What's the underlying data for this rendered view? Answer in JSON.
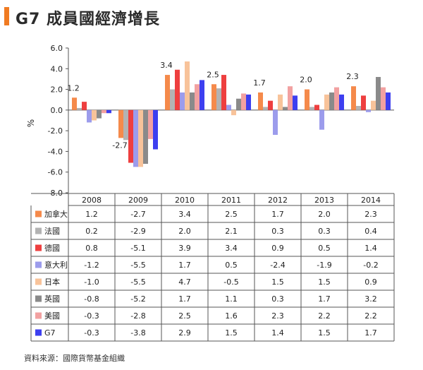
{
  "title": "G7 成員國經濟增長",
  "source": "資料來源：國際貨幣基金組織",
  "accent_color": "#f07b22",
  "chart_data": {
    "type": "bar",
    "title": "G7 成員國經濟增長",
    "ylabel": "%",
    "xlabel": "",
    "ylim": [
      -8.0,
      6.0
    ],
    "yticks": [
      6.0,
      4.0,
      2.0,
      0.0,
      -2.0,
      -4.0,
      -6.0,
      -8.0
    ],
    "ytick_labels": [
      "6.0",
      "4.0",
      "2.0",
      "0.0",
      "-2.0",
      "-4.0",
      "-6.0",
      "-8.0"
    ],
    "grid": false,
    "legend_placement": "table-left",
    "categories": [
      "2008",
      "2009",
      "2010",
      "2011",
      "2012",
      "2013",
      "2014"
    ],
    "annotated_series": "加拿大",
    "annotations": [
      "1.2",
      "-2.7",
      "3.4",
      "2.5",
      "1.7",
      "2.0",
      "2.3"
    ],
    "series": [
      {
        "name": "加拿大",
        "color": "#f58a4b",
        "values": [
          1.2,
          -2.7,
          3.4,
          2.5,
          1.7,
          2.0,
          2.3
        ],
        "labels": [
          "1.2",
          "-2.7",
          "3.4",
          "2.5",
          "1.7",
          "2.0",
          "2.3"
        ]
      },
      {
        "name": "法國",
        "color": "#b3b3b3",
        "values": [
          0.2,
          -2.9,
          2.0,
          2.1,
          0.3,
          0.3,
          0.4
        ],
        "labels": [
          "0.2",
          "-2.9",
          "2.0",
          "2.1",
          "0.3",
          "0.3",
          "0.4"
        ]
      },
      {
        "name": "德國",
        "color": "#ee3f3f",
        "values": [
          0.8,
          -5.1,
          3.9,
          3.4,
          0.9,
          0.5,
          1.4
        ],
        "labels": [
          "0.8",
          "-5.1",
          "3.9",
          "3.4",
          "0.9",
          "0.5",
          "1.4"
        ]
      },
      {
        "name": "意大利",
        "color": "#9c9cec",
        "values": [
          -1.2,
          -5.5,
          1.7,
          0.5,
          -2.4,
          -1.9,
          -0.2
        ],
        "labels": [
          "-1.2",
          "-5.5",
          "1.7",
          "0.5",
          "-2.4",
          "-1.9",
          "-0.2"
        ]
      },
      {
        "name": "日本",
        "color": "#f8c39a",
        "values": [
          -1.0,
          -5.5,
          4.7,
          -0.5,
          1.5,
          1.5,
          0.9
        ],
        "labels": [
          "-1.0",
          "-5.5",
          "4.7",
          "-0.5",
          "1.5",
          "1.5",
          "0.9"
        ]
      },
      {
        "name": "英國",
        "color": "#8a8a8a",
        "values": [
          -0.8,
          -5.2,
          1.7,
          1.1,
          0.3,
          1.7,
          3.2
        ],
        "labels": [
          "-0.8",
          "-5.2",
          "1.7",
          "1.1",
          "0.3",
          "1.7",
          "3.2"
        ]
      },
      {
        "name": "美國",
        "color": "#f2a1a1",
        "values": [
          -0.3,
          -2.8,
          2.5,
          1.6,
          2.3,
          2.2,
          2.2
        ],
        "labels": [
          "-0.3",
          "-2.8",
          "2.5",
          "1.6",
          "2.3",
          "2.2",
          "2.2"
        ]
      },
      {
        "name": "G7",
        "color": "#3d3ff0",
        "values": [
          -0.3,
          -3.8,
          2.9,
          1.5,
          1.4,
          1.5,
          1.7
        ],
        "labels": [
          "-0.3",
          "-3.8",
          "2.9",
          "1.5",
          "1.4",
          "1.5",
          "1.7"
        ]
      }
    ]
  }
}
